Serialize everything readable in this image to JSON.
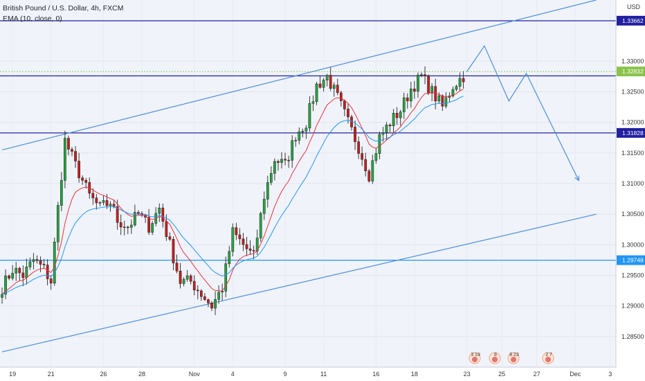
{
  "legend": {
    "symbol": "British Pound / U.S. Dollar, 4h, FXCM",
    "indicator": "EMA (10, close, 0)"
  },
  "currency": "USD",
  "colors": {
    "background": "#f0f3fa",
    "bull": "#26a641",
    "bear": "#c81e1e",
    "ema_fast": "#e8323c",
    "ema_slow": "#2196f3",
    "channel": "#4a90d9",
    "hline": "#2020a0",
    "hline_light": "#2196f3"
  },
  "chart_data": {
    "type": "candlestick",
    "x_tick_labels": [
      "19",
      "21",
      "26",
      "28",
      "Nov",
      "4",
      "9",
      "11",
      "16",
      "18",
      "23",
      "25",
      "27",
      "Dec",
      "3"
    ],
    "y_tick_labels": [
      "1.28500",
      "1.29000",
      "1.29500",
      "1.30000",
      "1.30500",
      "1.31000",
      "1.31500",
      "1.32000",
      "1.32500",
      "1.33000"
    ],
    "ylim": [
      1.28,
      1.34
    ],
    "price_tags": [
      {
        "label": "1.33662",
        "value": 1.33662
      },
      {
        "label": "1.32832",
        "value": 1.32832
      },
      {
        "label": "1.31828",
        "value": 1.31828
      },
      {
        "label": "1.29748",
        "value": 1.29748
      }
    ],
    "horizontal_levels": [
      1.3366,
      1.3276,
      1.31828,
      1.29748
    ],
    "channel_upper": [
      {
        "bar": 0,
        "price": 1.3155
      },
      {
        "bar": 170,
        "price": 1.34
      }
    ],
    "channel_lower": [
      {
        "bar": 0,
        "price": 1.2825
      },
      {
        "bar": 170,
        "price": 1.305
      }
    ],
    "projection": [
      {
        "bar": 133,
        "price": 1.3283
      },
      {
        "bar": 138,
        "price": 1.3325
      },
      {
        "bar": 145,
        "price": 1.3235
      },
      {
        "bar": 150,
        "price": 1.328
      },
      {
        "bar": 165,
        "price": 1.3105
      }
    ],
    "events": [
      "3 19",
      "8",
      "8 23",
      "2 7"
    ],
    "waypoints": [
      [
        0,
        1.293
      ],
      [
        3,
        1.296
      ],
      [
        6,
        1.295
      ],
      [
        9,
        1.2975
      ],
      [
        12,
        1.296
      ],
      [
        14,
        1.294
      ],
      [
        16,
        1.306
      ],
      [
        18,
        1.317
      ],
      [
        21,
        1.313
      ],
      [
        25,
        1.308
      ],
      [
        28,
        1.306
      ],
      [
        31,
        1.307
      ],
      [
        33,
        1.304
      ],
      [
        36,
        1.303
      ],
      [
        39,
        1.305
      ],
      [
        42,
        1.303
      ],
      [
        45,
        1.306
      ],
      [
        48,
        1.3
      ],
      [
        51,
        1.294
      ],
      [
        54,
        1.294
      ],
      [
        57,
        1.292
      ],
      [
        60,
        1.29
      ],
      [
        63,
        1.293
      ],
      [
        66,
        1.302
      ],
      [
        69,
        1.3
      ],
      [
        72,
        1.298
      ],
      [
        75,
        1.308
      ],
      [
        78,
        1.314
      ],
      [
        81,
        1.313
      ],
      [
        84,
        1.318
      ],
      [
        87,
        1.32
      ],
      [
        90,
        1.326
      ],
      [
        93,
        1.3275
      ],
      [
        96,
        1.324
      ],
      [
        99,
        1.32
      ],
      [
        102,
        1.316
      ],
      [
        105,
        1.3115
      ],
      [
        108,
        1.3175
      ],
      [
        111,
        1.32
      ],
      [
        114,
        1.322
      ],
      [
        117,
        1.3255
      ],
      [
        120,
        1.3275
      ],
      [
        123,
        1.325
      ],
      [
        126,
        1.3225
      ],
      [
        129,
        1.326
      ],
      [
        132,
        1.3276
      ]
    ]
  }
}
